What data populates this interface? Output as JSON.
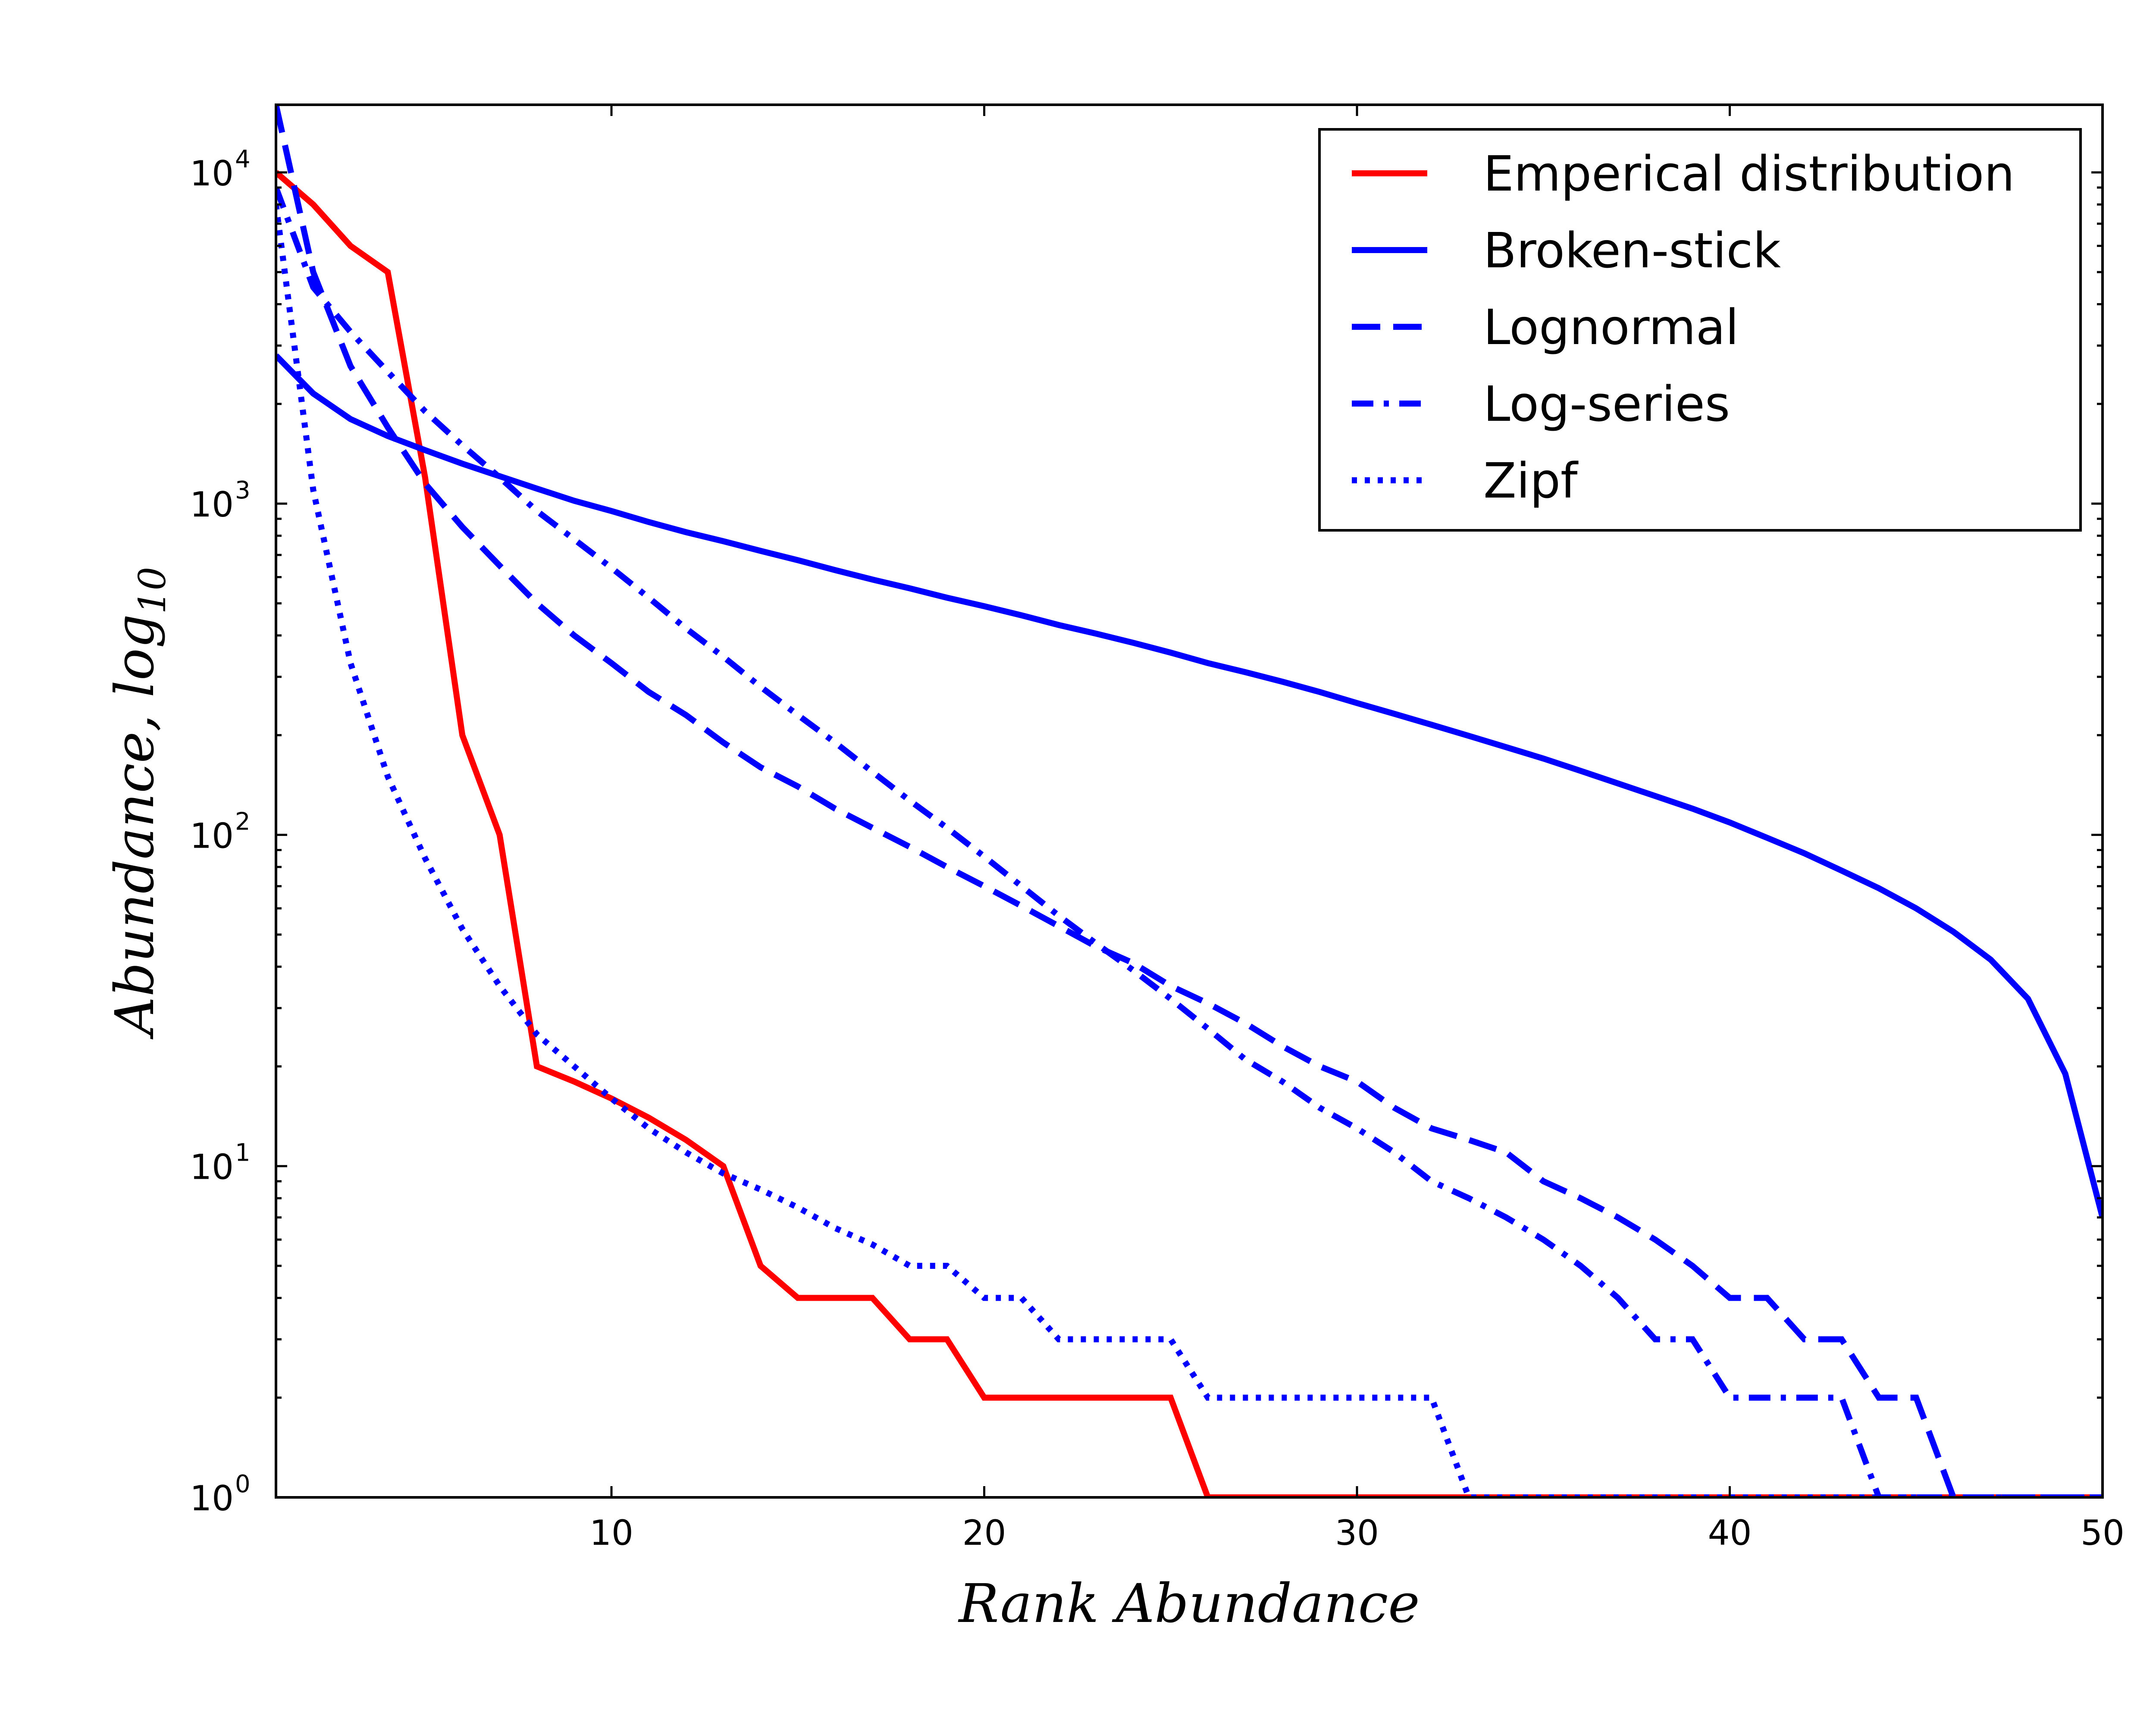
{
  "chart_data": {
    "type": "line",
    "xlabel": "Rank   Abundance",
    "ylabel_main": "Abundance, ",
    "ylabel_log": "log",
    "ylabel_sub": "10",
    "xlim": [
      1,
      50
    ],
    "ylim": [
      1,
      16000
    ],
    "yscale": "log",
    "x_ticks": [
      10,
      20,
      30,
      40,
      50
    ],
    "y_ticks": [
      {
        "value": 1,
        "base": "10",
        "exp": "0"
      },
      {
        "value": 10,
        "base": "10",
        "exp": "1"
      },
      {
        "value": 100,
        "base": "10",
        "exp": "2"
      },
      {
        "value": 1000,
        "base": "10",
        "exp": "3"
      },
      {
        "value": 10000,
        "base": "10",
        "exp": "4"
      }
    ],
    "grid": false,
    "legend_position": "top-right",
    "series": [
      {
        "name": "Emperical distribution",
        "color": "#ff0000",
        "style": "solid",
        "x": [
          1,
          2,
          3,
          4,
          5,
          6,
          7,
          8,
          9,
          10,
          11,
          12,
          13,
          14,
          15,
          16,
          17,
          18,
          19,
          20,
          21,
          22,
          23,
          24,
          25,
          26,
          27,
          28,
          29,
          30,
          31,
          32,
          33,
          34,
          35,
          36,
          37,
          38,
          39,
          40,
          41,
          42,
          43,
          44,
          45,
          46,
          47,
          48,
          49,
          50
        ],
        "y": [
          10000,
          8000,
          6000,
          5000,
          1200,
          200,
          100,
          20,
          18,
          16,
          14,
          12,
          10,
          5,
          4,
          4,
          4,
          3,
          3,
          2,
          2,
          2,
          2,
          2,
          2,
          1,
          1,
          1,
          1,
          1,
          1,
          1,
          1,
          1,
          1,
          1,
          1,
          1,
          1,
          1,
          1,
          1,
          1,
          1,
          1,
          1,
          1,
          1,
          1,
          1
        ]
      },
      {
        "name": "Broken-stick",
        "color": "#0000ff",
        "style": "solid",
        "x": [
          1,
          2,
          3,
          4,
          5,
          6,
          7,
          8,
          9,
          10,
          11,
          12,
          13,
          14,
          15,
          16,
          17,
          18,
          19,
          20,
          21,
          22,
          23,
          24,
          25,
          26,
          27,
          28,
          29,
          30,
          31,
          32,
          33,
          34,
          35,
          36,
          37,
          38,
          39,
          40,
          41,
          42,
          43,
          44,
          45,
          46,
          47,
          48,
          49,
          50
        ],
        "y": [
          2800,
          2150,
          1800,
          1600,
          1450,
          1320,
          1210,
          1110,
          1020,
          950,
          880,
          820,
          770,
          720,
          675,
          630,
          590,
          555,
          520,
          490,
          460,
          430,
          405,
          380,
          355,
          330,
          310,
          290,
          270,
          250,
          232,
          215,
          199,
          184,
          170,
          156,
          143,
          131,
          120,
          109,
          98,
          88,
          78,
          69,
          60,
          51,
          42,
          32,
          19,
          7
        ]
      },
      {
        "name": "Lognormal",
        "color": "#0000ff",
        "style": "dashed",
        "x": [
          1,
          2,
          3,
          4,
          5,
          6,
          7,
          8,
          9,
          10,
          11,
          12,
          13,
          14,
          15,
          16,
          17,
          18,
          19,
          20,
          21,
          22,
          23,
          24,
          25,
          26,
          27,
          28,
          29,
          30,
          31,
          32,
          33,
          34,
          35,
          36,
          37,
          38,
          39,
          40,
          41,
          42,
          43,
          44,
          45,
          46,
          47,
          48,
          49,
          50
        ],
        "y": [
          16000,
          5000,
          2600,
          1700,
          1150,
          850,
          650,
          500,
          400,
          330,
          270,
          230,
          190,
          160,
          140,
          120,
          105,
          92,
          80,
          70,
          61,
          53,
          46,
          41,
          35,
          31,
          27,
          23,
          20,
          18,
          15,
          13,
          12,
          11,
          9,
          8,
          7,
          6,
          5,
          4,
          4,
          3,
          3,
          2,
          2,
          1,
          1,
          1,
          1,
          1
        ]
      },
      {
        "name": "Log-series",
        "color": "#0000ff",
        "style": "dashdot",
        "x": [
          1,
          2,
          3,
          4,
          5,
          6,
          7,
          8,
          9,
          10,
          11,
          12,
          13,
          14,
          15,
          16,
          17,
          18,
          19,
          20,
          21,
          22,
          23,
          24,
          25,
          26,
          27,
          28,
          29,
          30,
          31,
          32,
          33,
          34,
          35,
          36,
          37,
          38,
          39,
          40,
          41,
          42,
          43,
          44,
          45,
          46,
          47,
          48,
          49,
          50
        ],
        "y": [
          9000,
          4500,
          3300,
          2500,
          1900,
          1500,
          1200,
          950,
          780,
          640,
          520,
          420,
          345,
          280,
          230,
          190,
          155,
          127,
          105,
          86,
          70,
          57,
          47,
          39,
          32,
          26,
          21,
          18,
          15,
          13,
          11,
          9,
          8,
          7,
          6,
          5,
          4,
          3,
          3,
          2,
          2,
          2,
          2,
          1,
          1,
          1,
          1,
          1,
          1,
          1
        ]
      },
      {
        "name": "Zipf",
        "color": "#0000ff",
        "style": "dotted",
        "x": [
          1,
          2,
          3,
          4,
          5,
          6,
          7,
          8,
          9,
          10,
          11,
          12,
          13,
          14,
          15,
          16,
          17,
          18,
          19,
          20,
          21,
          22,
          23,
          24,
          25,
          26,
          27,
          28,
          29,
          30,
          31,
          32,
          33,
          34,
          35,
          36,
          37,
          38,
          39,
          40,
          41,
          42,
          43,
          44,
          45,
          46,
          47,
          48,
          49,
          50
        ],
        "y": [
          8000,
          1100,
          330,
          150,
          85,
          52,
          35,
          25,
          20,
          16,
          13,
          11,
          9.5,
          8.5,
          7.5,
          6.5,
          5.8,
          5,
          5,
          4,
          4,
          3,
          3,
          3,
          3,
          2,
          2,
          2,
          2,
          2,
          2,
          2,
          1,
          1,
          1,
          1,
          1,
          1,
          1,
          1,
          1,
          1,
          1,
          1,
          1,
          1,
          1,
          1,
          1,
          1
        ]
      }
    ]
  }
}
